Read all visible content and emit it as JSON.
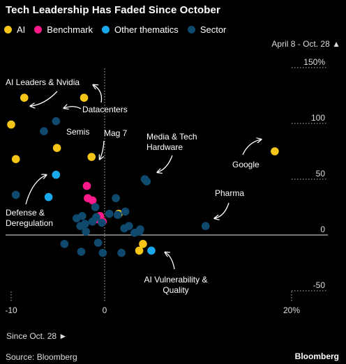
{
  "chart_data": {
    "type": "scatter",
    "title": "Tech Leadership Has Faded Since October",
    "xlabel": "Since Oct. 28 ►",
    "ylabel": "April 8 - Oct. 28 ▲",
    "xlim": [
      -10.5,
      21
    ],
    "ylim": [
      -52,
      155
    ],
    "x_ticks": [
      {
        "value": -10,
        "label": "-10"
      },
      {
        "value": 0,
        "label": "0"
      },
      {
        "value": 20,
        "label": "20%"
      }
    ],
    "y_ticks": [
      {
        "value": 150,
        "label": "150%"
      },
      {
        "value": 100,
        "label": "100"
      },
      {
        "value": 50,
        "label": "50"
      },
      {
        "value": 0,
        "label": "0"
      },
      {
        "value": -50,
        "label": "-50"
      }
    ],
    "series": [
      {
        "name": "AI",
        "color": "#f5c518",
        "points": [
          [
            -8.6,
            123
          ],
          [
            -10.0,
            99
          ],
          [
            -9.5,
            68
          ],
          [
            -5.1,
            78
          ],
          [
            -2.2,
            123
          ],
          [
            -1.4,
            70
          ],
          [
            1.5,
            19
          ],
          [
            3.7,
            -14
          ],
          [
            18.2,
            75
          ],
          [
            4.1,
            -8
          ]
        ]
      },
      {
        "name": "Benchmark",
        "color": "#ff1a8c",
        "points": [
          [
            -1.9,
            44
          ],
          [
            -1.8,
            33
          ],
          [
            -1.3,
            31
          ],
          [
            -0.5,
            17
          ],
          [
            -0.2,
            12
          ],
          [
            -0.7,
            14
          ]
        ]
      },
      {
        "name": "Other thematics",
        "color": "#1aa8ec",
        "points": [
          [
            -5.2,
            54
          ],
          [
            -6.0,
            34
          ],
          [
            5.0,
            -14
          ]
        ]
      },
      {
        "name": "Sector",
        "color": "#0f4a6e",
        "points": [
          [
            -5.2,
            102
          ],
          [
            -6.5,
            93
          ],
          [
            -9.5,
            36
          ],
          [
            -3.0,
            15
          ],
          [
            -2.4,
            17
          ],
          [
            -2.1,
            10
          ],
          [
            -1.3,
            12
          ],
          [
            -2.6,
            8
          ],
          [
            -2.0,
            3
          ],
          [
            -1.0,
            25
          ],
          [
            -0.3,
            11
          ],
          [
            0.5,
            19
          ],
          [
            1.4,
            18
          ],
          [
            2.1,
            6
          ],
          [
            2.6,
            8
          ],
          [
            3.2,
            2
          ],
          [
            3.7,
            3
          ],
          [
            3.8,
            5
          ],
          [
            4.3,
            50
          ],
          [
            4.5,
            48
          ],
          [
            10.8,
            8
          ],
          [
            -4.3,
            -8
          ],
          [
            -0.7,
            -7
          ],
          [
            -2.5,
            -15
          ],
          [
            -0.2,
            -16
          ],
          [
            1.8,
            -16
          ],
          [
            1.2,
            33
          ],
          [
            2.2,
            21
          ],
          [
            -0.9,
            16
          ]
        ]
      }
    ],
    "annotations": [
      {
        "lines": [
          "AI Leaders & Nvidia"
        ]
      },
      {
        "lines": [
          "Datacenters"
        ]
      },
      {
        "lines": [
          "Semis"
        ]
      },
      {
        "lines": [
          "Mag 7"
        ]
      },
      {
        "lines": [
          "Media & Tech",
          "Hardware"
        ]
      },
      {
        "lines": [
          "Google"
        ]
      },
      {
        "lines": [
          "Pharma"
        ]
      },
      {
        "lines": [
          "Defense &",
          "Deregulation"
        ]
      },
      {
        "lines": [
          "AI Vulnerability &",
          "Quality"
        ]
      }
    ],
    "legend": "top-left",
    "source": "Source: Bloomberg",
    "brand": "Bloomberg"
  }
}
